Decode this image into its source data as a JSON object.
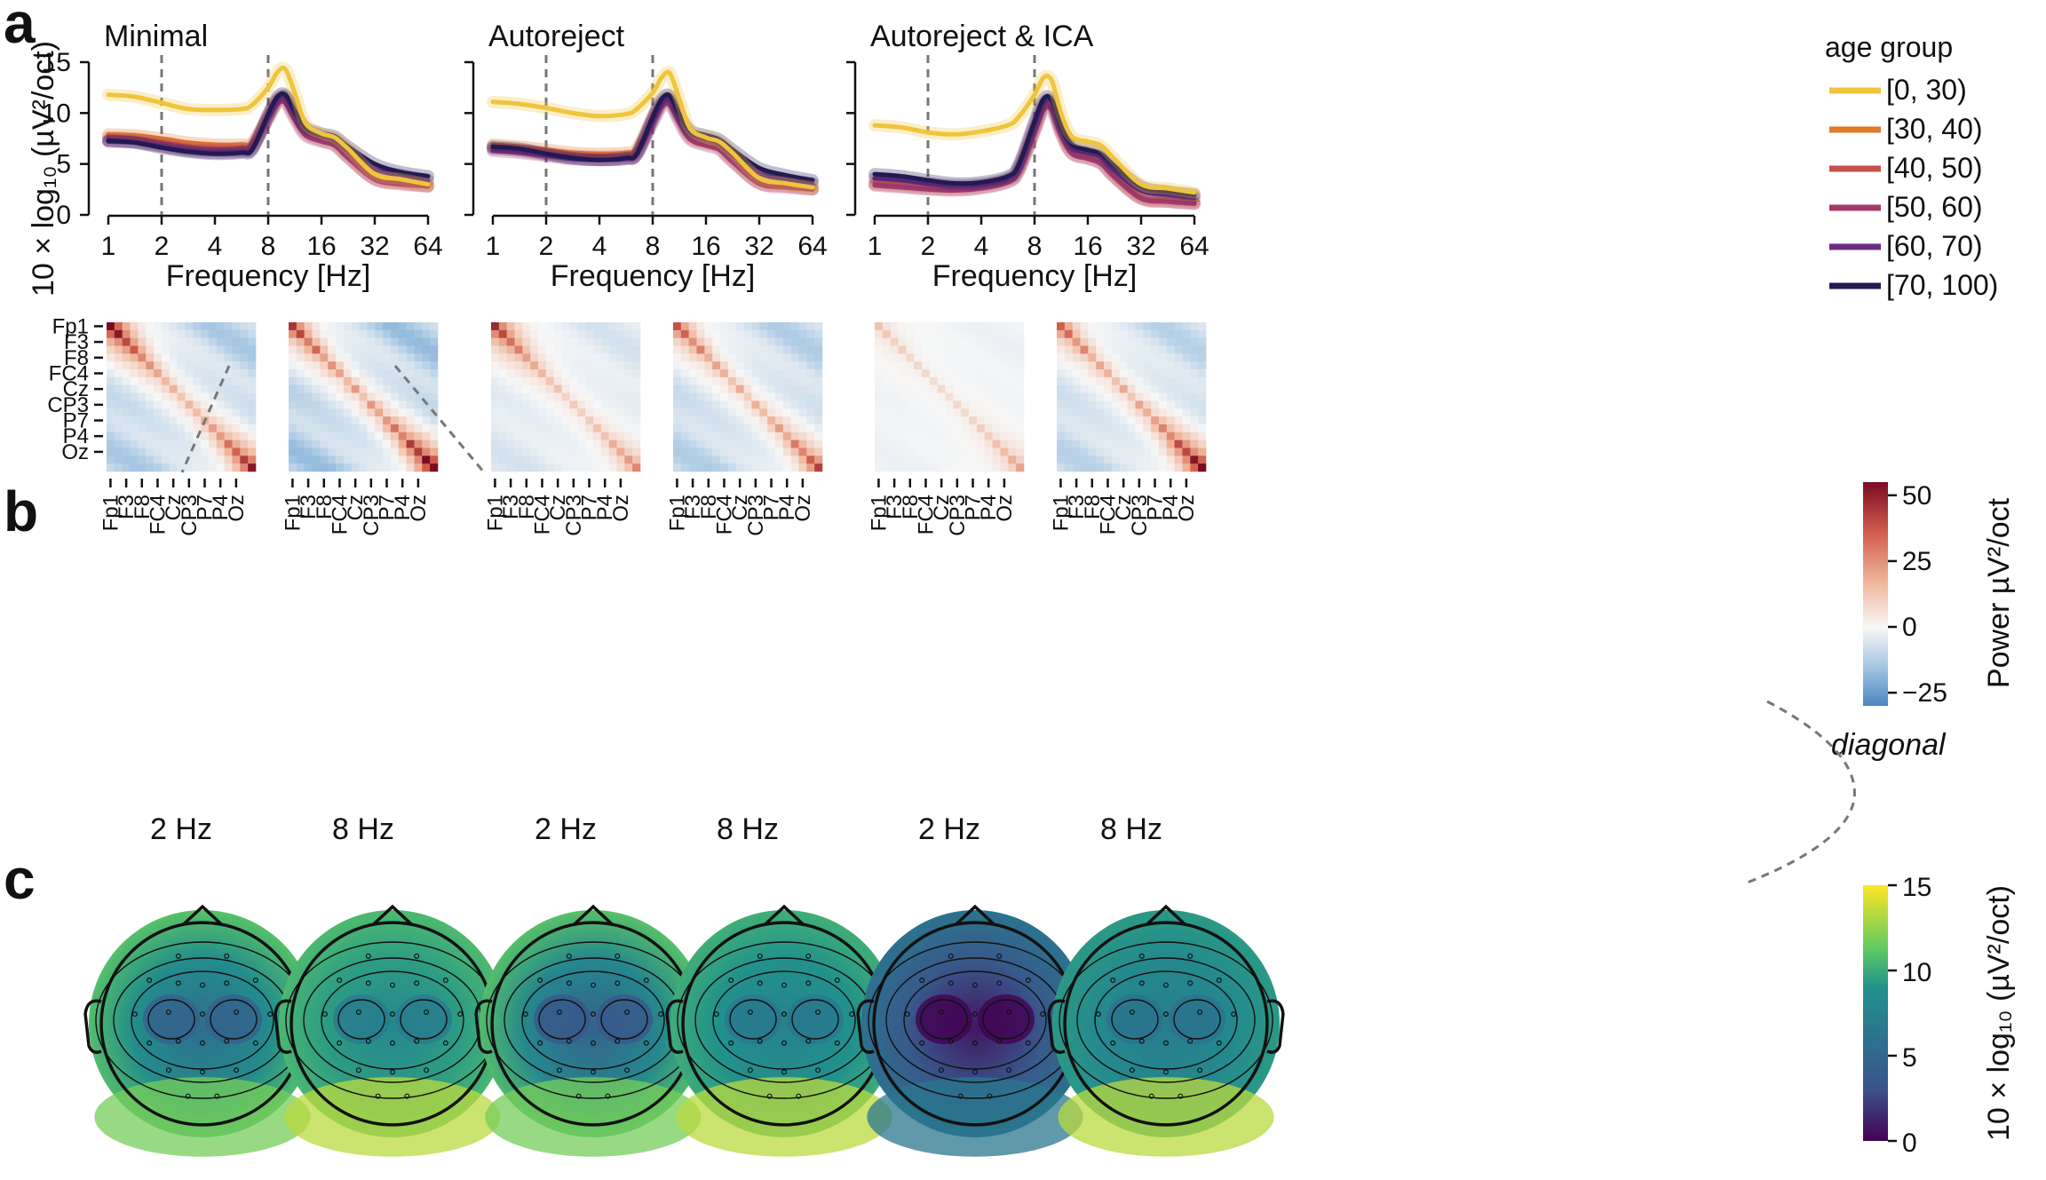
{
  "panel_letters": {
    "a": "a",
    "b": "b",
    "c": "c"
  },
  "chart_data": [
    {
      "type": "line",
      "panel": "a",
      "titles": [
        "Minimal",
        "Autoreject",
        "Autoreject & ICA"
      ],
      "xlabel": "Frequency [Hz]",
      "ylabel": "10 × log₁₀ (µV²/oct)",
      "xscale": "log2",
      "xlim": [
        1,
        64
      ],
      "ylim": [
        0,
        15
      ],
      "xtick_labels": [
        "1",
        "2",
        "4",
        "8",
        "16",
        "32",
        "64"
      ],
      "ytick_labels": [
        "0",
        "5",
        "10",
        "15"
      ],
      "ytick_values": [
        0,
        5,
        10,
        15
      ],
      "vlines_hz": [
        2,
        8
      ],
      "legend_title": "age group",
      "legend_position": "right",
      "x": [
        1,
        1.41,
        2,
        2.83,
        4,
        5.66,
        6.5,
        8,
        9,
        10,
        11.3,
        13,
        16,
        19,
        22.6,
        32,
        45,
        64
      ],
      "series_names": [
        "[0, 30)",
        "[30, 40)",
        "[40, 50)",
        "[50, 60)",
        "[60, 70)",
        "[70, 100)"
      ],
      "series_colors": [
        "#f0c43c",
        "#e07a2c",
        "#c8504a",
        "#a33a6a",
        "#6c2c84",
        "#221a52"
      ],
      "subplots": [
        {
          "series": [
            {
              "name": "[0, 30)",
              "values": [
                11.8,
                11.6,
                11.0,
                10.4,
                10.3,
                10.4,
                10.8,
                12.5,
                14.0,
                14.3,
                12.0,
                9.0,
                8.0,
                7.6,
                6.5,
                4.0,
                3.5,
                3.0
              ]
            },
            {
              "name": "[30, 40)",
              "values": [
                7.9,
                7.8,
                7.5,
                7.1,
                6.9,
                6.9,
                7.1,
                9.8,
                11.3,
                11.6,
                10.0,
                8.3,
                7.6,
                7.2,
                6.0,
                3.8,
                3.3,
                3.0
              ]
            },
            {
              "name": "[40, 50)",
              "values": [
                7.6,
                7.5,
                7.1,
                6.7,
                6.5,
                6.6,
                6.9,
                9.6,
                11.1,
                11.3,
                9.7,
                8.0,
                7.3,
                6.9,
                5.7,
                3.5,
                3.0,
                2.8
              ]
            },
            {
              "name": "[50, 60)",
              "values": [
                7.3,
                7.2,
                6.8,
                6.4,
                6.3,
                6.3,
                6.6,
                9.4,
                10.9,
                11.0,
                9.4,
                7.8,
                7.2,
                6.8,
                5.6,
                3.5,
                3.1,
                2.8
              ]
            },
            {
              "name": "[60, 70)",
              "values": [
                7.2,
                7.1,
                6.7,
                6.3,
                6.1,
                6.2,
                6.5,
                9.6,
                11.3,
                11.6,
                10.0,
                8.4,
                7.8,
                7.4,
                6.4,
                4.5,
                3.9,
                3.4
              ]
            },
            {
              "name": "[70, 100)",
              "values": [
                7.3,
                7.1,
                6.6,
                6.2,
                6.0,
                6.1,
                6.4,
                9.9,
                11.6,
                11.8,
                10.2,
                8.6,
                8.0,
                7.7,
                6.7,
                5.0,
                4.2,
                3.8
              ]
            }
          ]
        },
        {
          "series": [
            {
              "name": "[0, 30)",
              "values": [
                11.1,
                10.9,
                10.5,
                10.0,
                9.7,
                9.9,
                10.4,
                12.0,
                13.5,
                13.9,
                11.4,
                8.5,
                7.6,
                7.2,
                6.1,
                3.6,
                3.1,
                2.7
              ]
            },
            {
              "name": "[30, 40)",
              "values": [
                6.9,
                6.7,
                6.4,
                6.1,
                6.0,
                6.1,
                6.5,
                9.6,
                11.2,
                11.5,
                9.8,
                7.9,
                7.3,
                6.9,
                5.6,
                3.4,
                3.0,
                2.7
              ]
            },
            {
              "name": "[40, 50)",
              "values": [
                6.6,
                6.4,
                6.1,
                5.8,
                5.7,
                5.8,
                6.2,
                9.3,
                10.9,
                11.1,
                9.4,
                7.6,
                7.0,
                6.6,
                5.3,
                3.1,
                2.7,
                2.5
              ]
            },
            {
              "name": "[50, 60)",
              "values": [
                6.3,
                6.1,
                5.8,
                5.5,
                5.4,
                5.5,
                5.9,
                9.0,
                10.6,
                10.8,
                9.1,
                7.4,
                6.8,
                6.4,
                5.2,
                3.1,
                2.8,
                2.5
              ]
            },
            {
              "name": "[60, 70)",
              "values": [
                6.5,
                6.3,
                5.9,
                5.5,
                5.4,
                5.5,
                5.9,
                9.3,
                11.0,
                11.3,
                9.6,
                8.0,
                7.5,
                7.1,
                6.0,
                4.1,
                3.5,
                3.1
              ]
            },
            {
              "name": "[70, 100)",
              "values": [
                6.7,
                6.5,
                6.0,
                5.6,
                5.4,
                5.6,
                6.0,
                9.6,
                11.4,
                11.7,
                9.9,
                8.3,
                7.8,
                7.4,
                6.4,
                4.6,
                3.9,
                3.4
              ]
            }
          ]
        },
        {
          "series": [
            {
              "name": "[0, 30)",
              "values": [
                8.8,
                8.6,
                8.1,
                7.9,
                8.2,
                8.8,
                9.6,
                11.8,
                13.5,
                13.2,
                10.0,
                7.7,
                7.2,
                6.8,
                5.5,
                3.0,
                2.6,
                2.2
              ]
            },
            {
              "name": "[30, 40)",
              "values": [
                3.2,
                3.0,
                2.8,
                2.7,
                2.9,
                3.5,
                4.5,
                8.5,
                10.8,
                10.9,
                8.4,
                6.4,
                5.9,
                5.4,
                4.0,
                1.8,
                1.5,
                1.3
              ]
            },
            {
              "name": "[40, 50)",
              "values": [
                3.0,
                2.8,
                2.6,
                2.5,
                2.7,
                3.3,
                4.3,
                8.3,
                10.6,
                10.7,
                8.1,
                6.1,
                5.6,
                5.1,
                3.7,
                1.6,
                1.3,
                1.1
              ]
            },
            {
              "name": "[50, 60)",
              "values": [
                2.9,
                2.7,
                2.5,
                2.4,
                2.6,
                3.2,
                4.2,
                8.1,
                10.3,
                10.3,
                7.9,
                6.0,
                5.5,
                5.0,
                3.7,
                1.6,
                1.3,
                1.1
              ]
            },
            {
              "name": "[60, 70)",
              "values": [
                3.6,
                3.4,
                3.1,
                2.9,
                3.0,
                3.6,
                4.7,
                8.8,
                11.0,
                11.1,
                8.5,
                6.6,
                6.1,
                5.7,
                4.4,
                2.4,
                2.0,
                1.7
              ]
            },
            {
              "name": "[70, 100)",
              "values": [
                4.0,
                3.8,
                3.4,
                3.1,
                3.2,
                3.8,
                4.9,
                9.2,
                11.4,
                11.3,
                8.7,
                6.9,
                6.4,
                6.0,
                4.8,
                2.8,
                2.3,
                2.0
              ]
            }
          ]
        }
      ]
    },
    {
      "type": "heatmap",
      "panel": "b",
      "channel_labels": [
        "Fp1",
        "F3",
        "F8",
        "FC4",
        "Cz",
        "CP3",
        "P7",
        "P4",
        "Oz"
      ],
      "n_channels": 19,
      "matrix_labels": [
        "2 Hz",
        "8 Hz",
        "2 Hz",
        "8 Hz",
        "2 Hz",
        "8 Hz"
      ],
      "colorbar": {
        "label": "Power µV²/oct",
        "ticks": [
          "50",
          "25",
          "0",
          "−25"
        ],
        "tick_values": [
          50,
          25,
          0,
          -25
        ],
        "vmin": -30,
        "vmax": 55,
        "note": "diagonal"
      },
      "strengths": [
        {
          "front": 1.0,
          "back": 0.8,
          "diag": 0.18,
          "off": -0.55
        },
        {
          "front": 0.6,
          "back": 1.0,
          "diag": 0.45,
          "off": -0.65
        },
        {
          "front": 0.75,
          "back": 0.35,
          "diag": 0.12,
          "off": -0.25
        },
        {
          "front": 0.5,
          "back": 0.55,
          "diag": 0.35,
          "off": -0.5
        },
        {
          "front": 0.12,
          "back": 0.25,
          "diag": 0.08,
          "off": -0.08
        },
        {
          "front": 0.45,
          "back": 0.95,
          "diag": 0.35,
          "off": -0.45
        }
      ]
    },
    {
      "type": "heatmap",
      "panel": "c",
      "description_labels": [
        "2 Hz",
        "8 Hz",
        "2 Hz",
        "8 Hz",
        "2 Hz",
        "8 Hz"
      ],
      "colorbar": {
        "label": "10 × log₁₀ (µV²/oct)",
        "ticks": [
          "15",
          "10",
          "5",
          "0"
        ],
        "tick_values": [
          15,
          10,
          5,
          0
        ],
        "vmin": 0,
        "vmax": 15
      },
      "topomaps": [
        {
          "center": 5.5,
          "edge": 11.5,
          "posterior": 12.0
        },
        {
          "center": 8.0,
          "edge": 11.0,
          "posterior": 13.5
        },
        {
          "center": 4.5,
          "edge": 11.5,
          "posterior": 12.0
        },
        {
          "center": 7.5,
          "edge": 10.5,
          "posterior": 13.5
        },
        {
          "center": 0.8,
          "edge": 6.5,
          "posterior": 6.5
        },
        {
          "center": 7.0,
          "edge": 9.5,
          "posterior": 13.5
        }
      ]
    }
  ]
}
